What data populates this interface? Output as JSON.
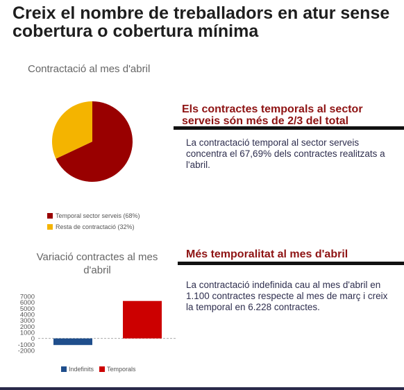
{
  "header": {
    "title": "Creix el nombre de treballadors en atur sense cobertura o cobertura mínima"
  },
  "sections": [
    {
      "heading": "Els contractes temporals al sector serveis són més de 2/3 del total",
      "text": "La contractació temporal al sector serveis concentra el 67,69% dels contractes realitzats a l'abril."
    },
    {
      "heading": "Més temporalitat al mes d'abril",
      "text": "La contractació indefinida cau al mes d'abril en 1.100 contractes respecte al mes de març i creix la temporal en 6.228 contractes."
    }
  ],
  "chart_data": [
    {
      "type": "pie",
      "title": "Contractació al mes d'abril",
      "categories": [
        "Temporal sector serveis (68%)",
        "Resta de contractació (32%)"
      ],
      "values": [
        68,
        32
      ],
      "colors": [
        "#990000",
        "#f4b400"
      ]
    },
    {
      "type": "bar",
      "title": "Variació contractes al mes d'abril",
      "categories": [
        "Indefinits",
        "Temporals"
      ],
      "values": [
        -1100,
        6228
      ],
      "colors": [
        "#1f4e8c",
        "#cc0000"
      ],
      "ylim": [
        -2000,
        7000
      ],
      "yticks": [
        -2000,
        -1000,
        0,
        1000,
        2000,
        3000,
        4000,
        5000,
        6000,
        7000
      ]
    }
  ]
}
